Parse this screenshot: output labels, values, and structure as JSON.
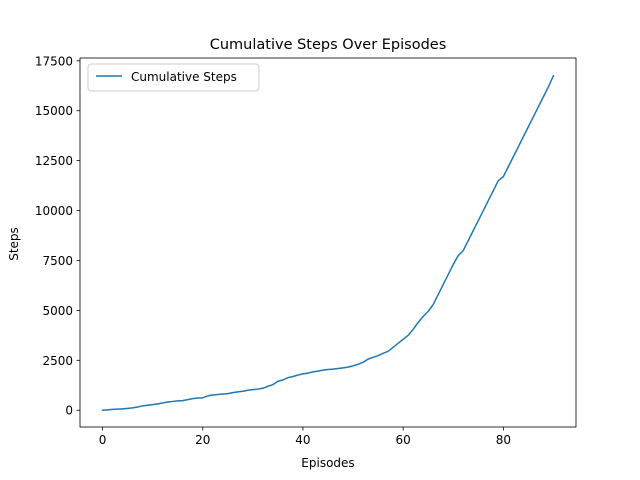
{
  "chart_data": {
    "type": "line",
    "title": "Cumulative Steps Over Episodes",
    "xlabel": "Episodes",
    "ylabel": "Steps",
    "xlim": [
      -4.5,
      94.5
    ],
    "ylim": [
      -840,
      17640
    ],
    "x_ticks": [
      0,
      20,
      40,
      60,
      80
    ],
    "y_ticks": [
      0,
      2500,
      5000,
      7500,
      10000,
      12500,
      15000,
      17500
    ],
    "x_tick_labels": [
      "0",
      "20",
      "40",
      "60",
      "80"
    ],
    "y_tick_labels": [
      "0",
      "2500",
      "5000",
      "7500",
      "10000",
      "12500",
      "15000",
      "17500"
    ],
    "grid": false,
    "legend": {
      "position": "top-left",
      "entries": [
        "Cumulative Steps"
      ]
    },
    "series": [
      {
        "name": "Cumulative Steps",
        "color": "#1f77b4",
        "x": [
          0,
          1,
          2,
          3,
          4,
          5,
          6,
          7,
          8,
          9,
          10,
          11,
          12,
          13,
          14,
          15,
          16,
          17,
          18,
          19,
          20,
          21,
          22,
          23,
          24,
          25,
          26,
          27,
          28,
          29,
          30,
          31,
          32,
          33,
          34,
          35,
          36,
          37,
          38,
          39,
          40,
          41,
          42,
          43,
          44,
          45,
          46,
          47,
          48,
          49,
          50,
          51,
          52,
          53,
          54,
          55,
          56,
          57,
          58,
          59,
          60,
          61,
          62,
          63,
          64,
          65,
          66,
          67,
          68,
          69,
          70,
          71,
          72,
          73,
          74,
          75,
          76,
          77,
          78,
          79,
          80,
          81,
          82,
          83,
          84,
          85,
          86,
          87,
          88,
          89,
          90
        ],
        "y": [
          0,
          20,
          40,
          55,
          70,
          90,
          120,
          160,
          220,
          250,
          280,
          320,
          360,
          410,
          440,
          470,
          480,
          530,
          580,
          610,
          620,
          720,
          760,
          790,
          810,
          830,
          880,
          920,
          950,
          1000,
          1030,
          1060,
          1100,
          1200,
          1280,
          1450,
          1520,
          1630,
          1690,
          1760,
          1820,
          1860,
          1920,
          1960,
          2010,
          2040,
          2060,
          2090,
          2120,
          2160,
          2220,
          2300,
          2400,
          2560,
          2650,
          2730,
          2850,
          2950,
          3150,
          3350,
          3550,
          3750,
          4050,
          4400,
          4700,
          4950,
          5300,
          5800,
          6300,
          6800,
          7300,
          7750,
          8000,
          8500,
          9000,
          9500,
          10000,
          10500,
          11000,
          11500,
          11700,
          12200,
          12700,
          13200,
          13700,
          14200,
          14700,
          15200,
          15700,
          16200,
          16750
        ]
      }
    ]
  }
}
